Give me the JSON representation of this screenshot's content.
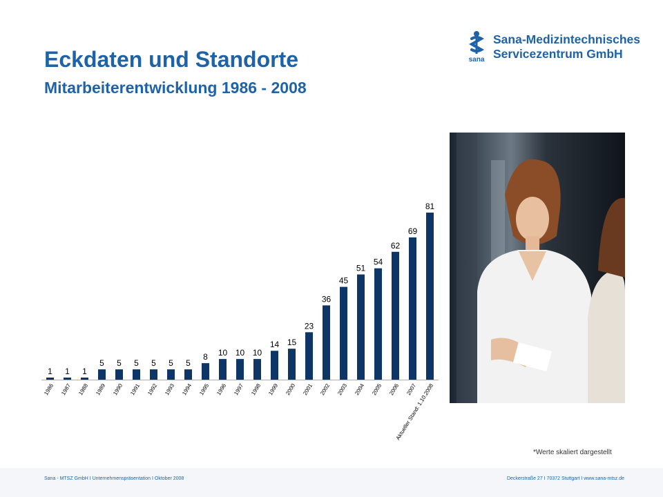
{
  "header": {
    "title": "Eckdaten und Standorte",
    "subtitle": "Mitarbeiterentwicklung 1986 - 2008"
  },
  "logo": {
    "line1": "Sana-Medizintechnisches",
    "line2": "Servicezentrum GmbH",
    "mark_text": "sana",
    "color": "#1e62a8"
  },
  "note": "*Werte skaliert dargestellt",
  "footer": {
    "left": "Sana - MTSZ GmbH I Unternehmenspräsentation   I Oktober  2008",
    "right": "Deckerstraße 27 I 70372 Stuttgart I www.sana-mtsz.de"
  },
  "photo": {
    "icon": "photo-two-women-conversation"
  },
  "chart_data": {
    "type": "bar",
    "categories": [
      "1986",
      "1987",
      "1988",
      "1989",
      "1990",
      "1991",
      "1992",
      "1993",
      "1994",
      "1995",
      "1996",
      "1997",
      "1998",
      "1999",
      "2000",
      "2001",
      "2002",
      "2003",
      "2004",
      "2005",
      "2006",
      "2007",
      "Aktueller Stand: 1.10.2008"
    ],
    "values": [
      1,
      1,
      1,
      5,
      5,
      5,
      5,
      5,
      5,
      8,
      10,
      10,
      10,
      14,
      15,
      23,
      36,
      45,
      51,
      54,
      62,
      69,
      81
    ],
    "bar_color": "#0d3566",
    "data_labels": true,
    "grid": false
  }
}
